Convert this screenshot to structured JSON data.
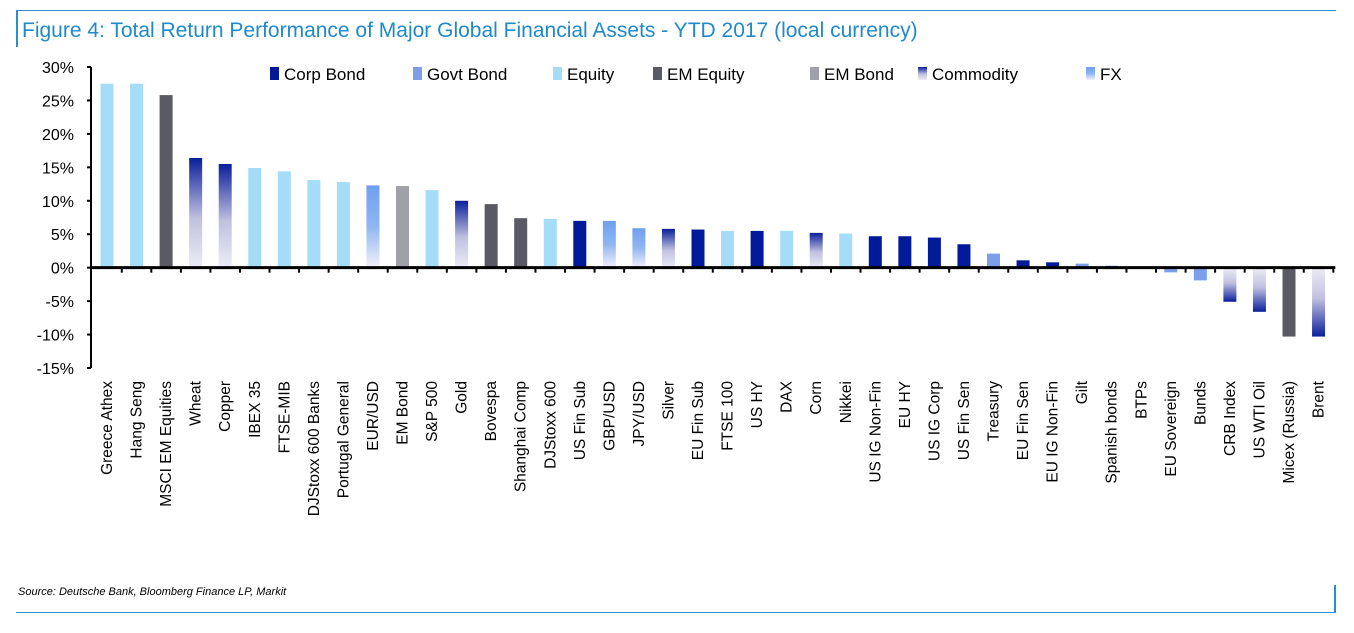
{
  "chart_data": {
    "type": "bar",
    "title": "Figure 4: Total Return Performance of Major Global Financial Assets - YTD 2017 (local currency)",
    "source": "Source: Deutsche Bank, Bloomberg Finance LP, Markit",
    "xlabel": "",
    "ylabel": "",
    "ylim": [
      -15,
      30
    ],
    "yticks": [
      30,
      25,
      20,
      15,
      10,
      5,
      0,
      -5,
      -10,
      -15
    ],
    "ytick_labels": [
      "30%",
      "25%",
      "20%",
      "15%",
      "10%",
      "5%",
      "0%",
      "-5%",
      "-10%",
      "-15%"
    ],
    "grid": false,
    "legend_position": "top",
    "legend": [
      {
        "name": "Corp Bond",
        "color": "#001a99"
      },
      {
        "name": "Govt Bond",
        "color": "#7b9fe8"
      },
      {
        "name": "Equity",
        "color": "#a5dcf7"
      },
      {
        "name": "EM Equity",
        "color": "#595a63"
      },
      {
        "name": "EM Bond",
        "color": "#a0a0a8"
      },
      {
        "name": "Commodity",
        "color": "#0a1f9a",
        "gradient_to": "#dcdcef"
      },
      {
        "name": "FX",
        "color": "#6f9ff0",
        "gradient_to": "#ffffff"
      }
    ],
    "categories": [
      "Greece Athex",
      "Hang Seng",
      "MSCI EM Equities",
      "Wheat",
      "Copper",
      "IBEX 35",
      "FTSE-MIB",
      "DJStoxx 600 Banks",
      "Portugal General",
      "EUR/USD",
      "EM Bond",
      "S&P 500",
      "Gold",
      "Bovespa",
      "Shanghai Comp",
      "DJStoxx 600",
      "US Fin Sub",
      "GBP/USD",
      "JPY/USD",
      "Silver",
      "EU Fin Sub",
      "FTSE 100",
      "US HY",
      "DAX",
      "Corn",
      "Nikkei",
      "US IG Non-Fin",
      "EU HY",
      "US IG Corp",
      "US Fin Sen",
      "Treasury",
      "EU Fin Sen",
      "EU IG Non-Fin",
      "Gilt",
      "Spanish bonds",
      "BTPs",
      "EU Sovereign",
      "Bunds",
      "CRB Index",
      "US WTI Oil",
      "Micex (Russia)",
      "Brent"
    ],
    "asset_class": [
      "Equity",
      "Equity",
      "EM Equity",
      "Commodity",
      "Commodity",
      "Equity",
      "Equity",
      "Equity",
      "Equity",
      "FX",
      "EM Bond",
      "Equity",
      "Commodity",
      "EM Equity",
      "EM Equity",
      "Equity",
      "Corp Bond",
      "FX",
      "FX",
      "Commodity",
      "Corp Bond",
      "Equity",
      "Corp Bond",
      "Equity",
      "Commodity",
      "Equity",
      "Corp Bond",
      "Corp Bond",
      "Corp Bond",
      "Corp Bond",
      "Govt Bond",
      "Corp Bond",
      "Corp Bond",
      "Govt Bond",
      "Govt Bond",
      "Govt Bond",
      "Govt Bond",
      "Govt Bond",
      "Commodity",
      "Commodity",
      "EM Equity",
      "Commodity"
    ],
    "values": [
      27.5,
      27.5,
      25.8,
      16.4,
      15.5,
      14.9,
      14.4,
      13.1,
      12.8,
      12.3,
      12.2,
      11.6,
      10.0,
      9.5,
      7.4,
      7.3,
      7.0,
      7.0,
      5.9,
      5.8,
      5.7,
      5.5,
      5.5,
      5.5,
      5.2,
      5.1,
      4.7,
      4.7,
      4.5,
      3.5,
      2.1,
      1.1,
      0.8,
      0.6,
      0.3,
      -0.2,
      -0.7,
      -1.9,
      -5.1,
      -6.6,
      -10.3,
      -10.3
    ]
  }
}
